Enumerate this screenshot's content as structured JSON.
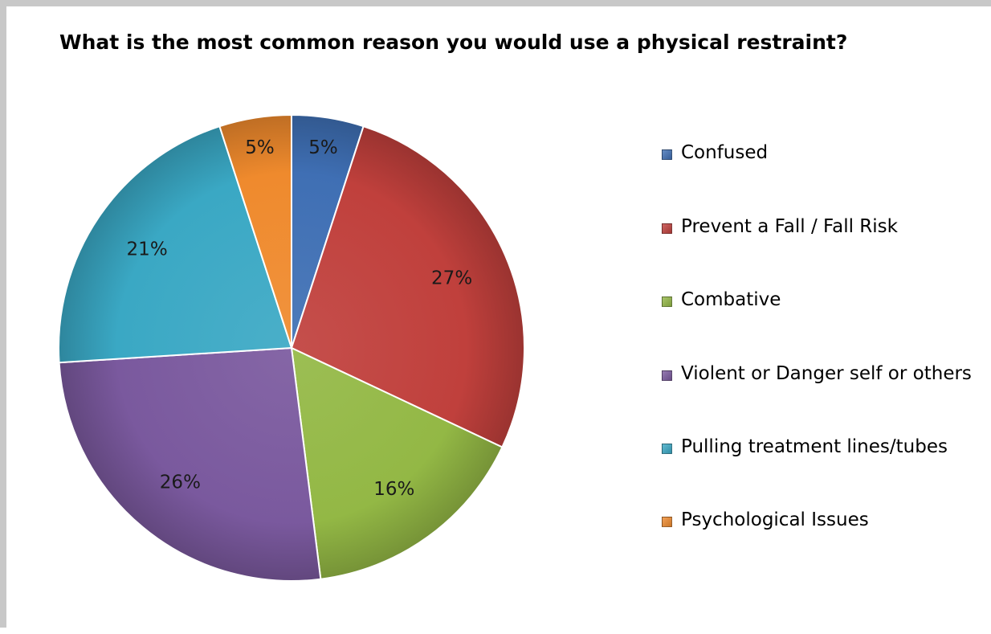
{
  "chart_data": {
    "type": "pie",
    "title": "What is the most common reason you would use a physical restraint?",
    "slices": [
      {
        "label": "Confused",
        "value": 5,
        "value_label": "5%",
        "color": "#3f6fb4"
      },
      {
        "label": "Prevent a Fall / Fall Risk",
        "value": 27,
        "value_label": "27%",
        "color": "#c0403c"
      },
      {
        "label": "Combative",
        "value": 16,
        "value_label": "16%",
        "color": "#93b845"
      },
      {
        "label": "Violent or Danger self or others",
        "value": 26,
        "value_label": "26%",
        "color": "#7a599e"
      },
      {
        "label": "Pulling treatment lines/tubes",
        "value": 21,
        "value_label": "21%",
        "color": "#3aa8c4"
      },
      {
        "label": "Psychological Issues",
        "value": 5,
        "value_label": "5%",
        "color": "#ef8a2d"
      }
    ],
    "legend_position": "right"
  }
}
